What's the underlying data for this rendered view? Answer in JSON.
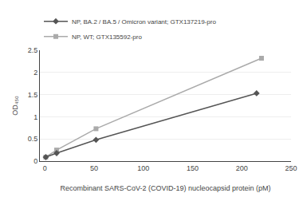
{
  "chart_data": {
    "type": "line",
    "xlabel": "Recombinant SARS-CoV-2 (COVID-19) nucleocapsid protein (pM)",
    "ylabel": "OD₄₅₀",
    "series": [
      {
        "name": "NP, BA.2 / BA.5 / Omicron variant; GTX137219-pro",
        "x": [
          1,
          12,
          52,
          215
        ],
        "values": [
          0.09,
          0.18,
          0.48,
          1.53
        ],
        "color": "#555555",
        "marker": "diamond"
      },
      {
        "name": "NP, WT; GTX135592-pro",
        "x": [
          1,
          12,
          52,
          220
        ],
        "values": [
          0.09,
          0.25,
          0.73,
          2.32
        ],
        "color": "#aaaaaa",
        "marker": "square"
      }
    ],
    "xlim": [
      -5,
      250
    ],
    "ylim": [
      0,
      2.5
    ],
    "xticks": [
      0,
      50,
      100,
      150,
      200,
      250
    ],
    "yticks": [
      0,
      0.5,
      1.0,
      1.5,
      2.0,
      2.5
    ],
    "grid": "y",
    "legend": "upper left"
  }
}
